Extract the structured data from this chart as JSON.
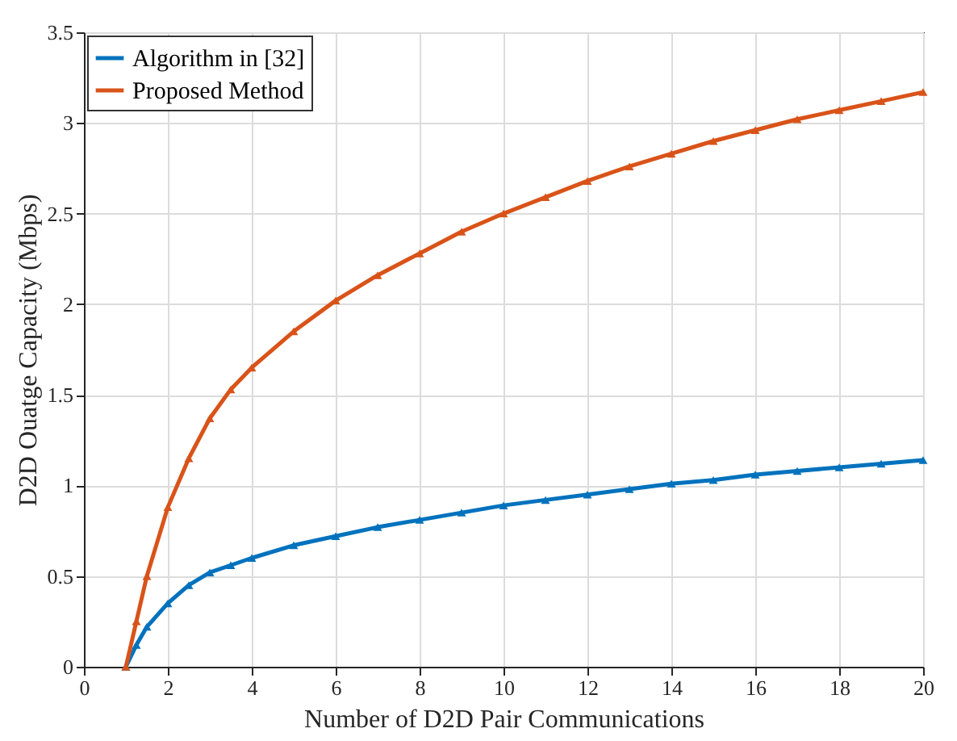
{
  "chart_data": {
    "type": "line",
    "xlabel": "Number of D2D Pair Communications",
    "ylabel": "D2D Ouatge Capacity (Mbps)",
    "x": [
      1,
      1.25,
      1.5,
      2,
      2.5,
      3,
      3.5,
      4,
      5,
      6,
      7,
      8,
      9,
      10,
      11,
      12,
      13,
      14,
      15,
      16,
      17,
      18,
      19,
      20
    ],
    "series": [
      {
        "name": "Algorithm in [32]",
        "color": "#0072bd",
        "values": [
          0,
          0.12,
          0.22,
          0.35,
          0.45,
          0.52,
          0.56,
          0.6,
          0.67,
          0.72,
          0.77,
          0.81,
          0.85,
          0.89,
          0.92,
          0.95,
          0.98,
          1.01,
          1.03,
          1.06,
          1.08,
          1.1,
          1.12,
          1.14
        ]
      },
      {
        "name": "Proposed Method",
        "color": "#d95319",
        "values": [
          0,
          0.25,
          0.5,
          0.88,
          1.15,
          1.37,
          1.53,
          1.65,
          1.85,
          2.02,
          2.16,
          2.28,
          2.4,
          2.5,
          2.59,
          2.68,
          2.76,
          2.83,
          2.9,
          2.96,
          3.02,
          3.07,
          3.12,
          3.17
        ]
      }
    ],
    "xlim": [
      0,
      20
    ],
    "xticks": [
      0,
      2,
      4,
      6,
      8,
      10,
      12,
      14,
      16,
      18,
      20
    ],
    "ylim": [
      0,
      3.5
    ],
    "yticks": [
      0,
      0.5,
      1,
      1.5,
      2,
      2.5,
      3,
      3.5
    ],
    "grid": true,
    "legend": "top left",
    "marker": "triangle",
    "line_style": "solid"
  }
}
